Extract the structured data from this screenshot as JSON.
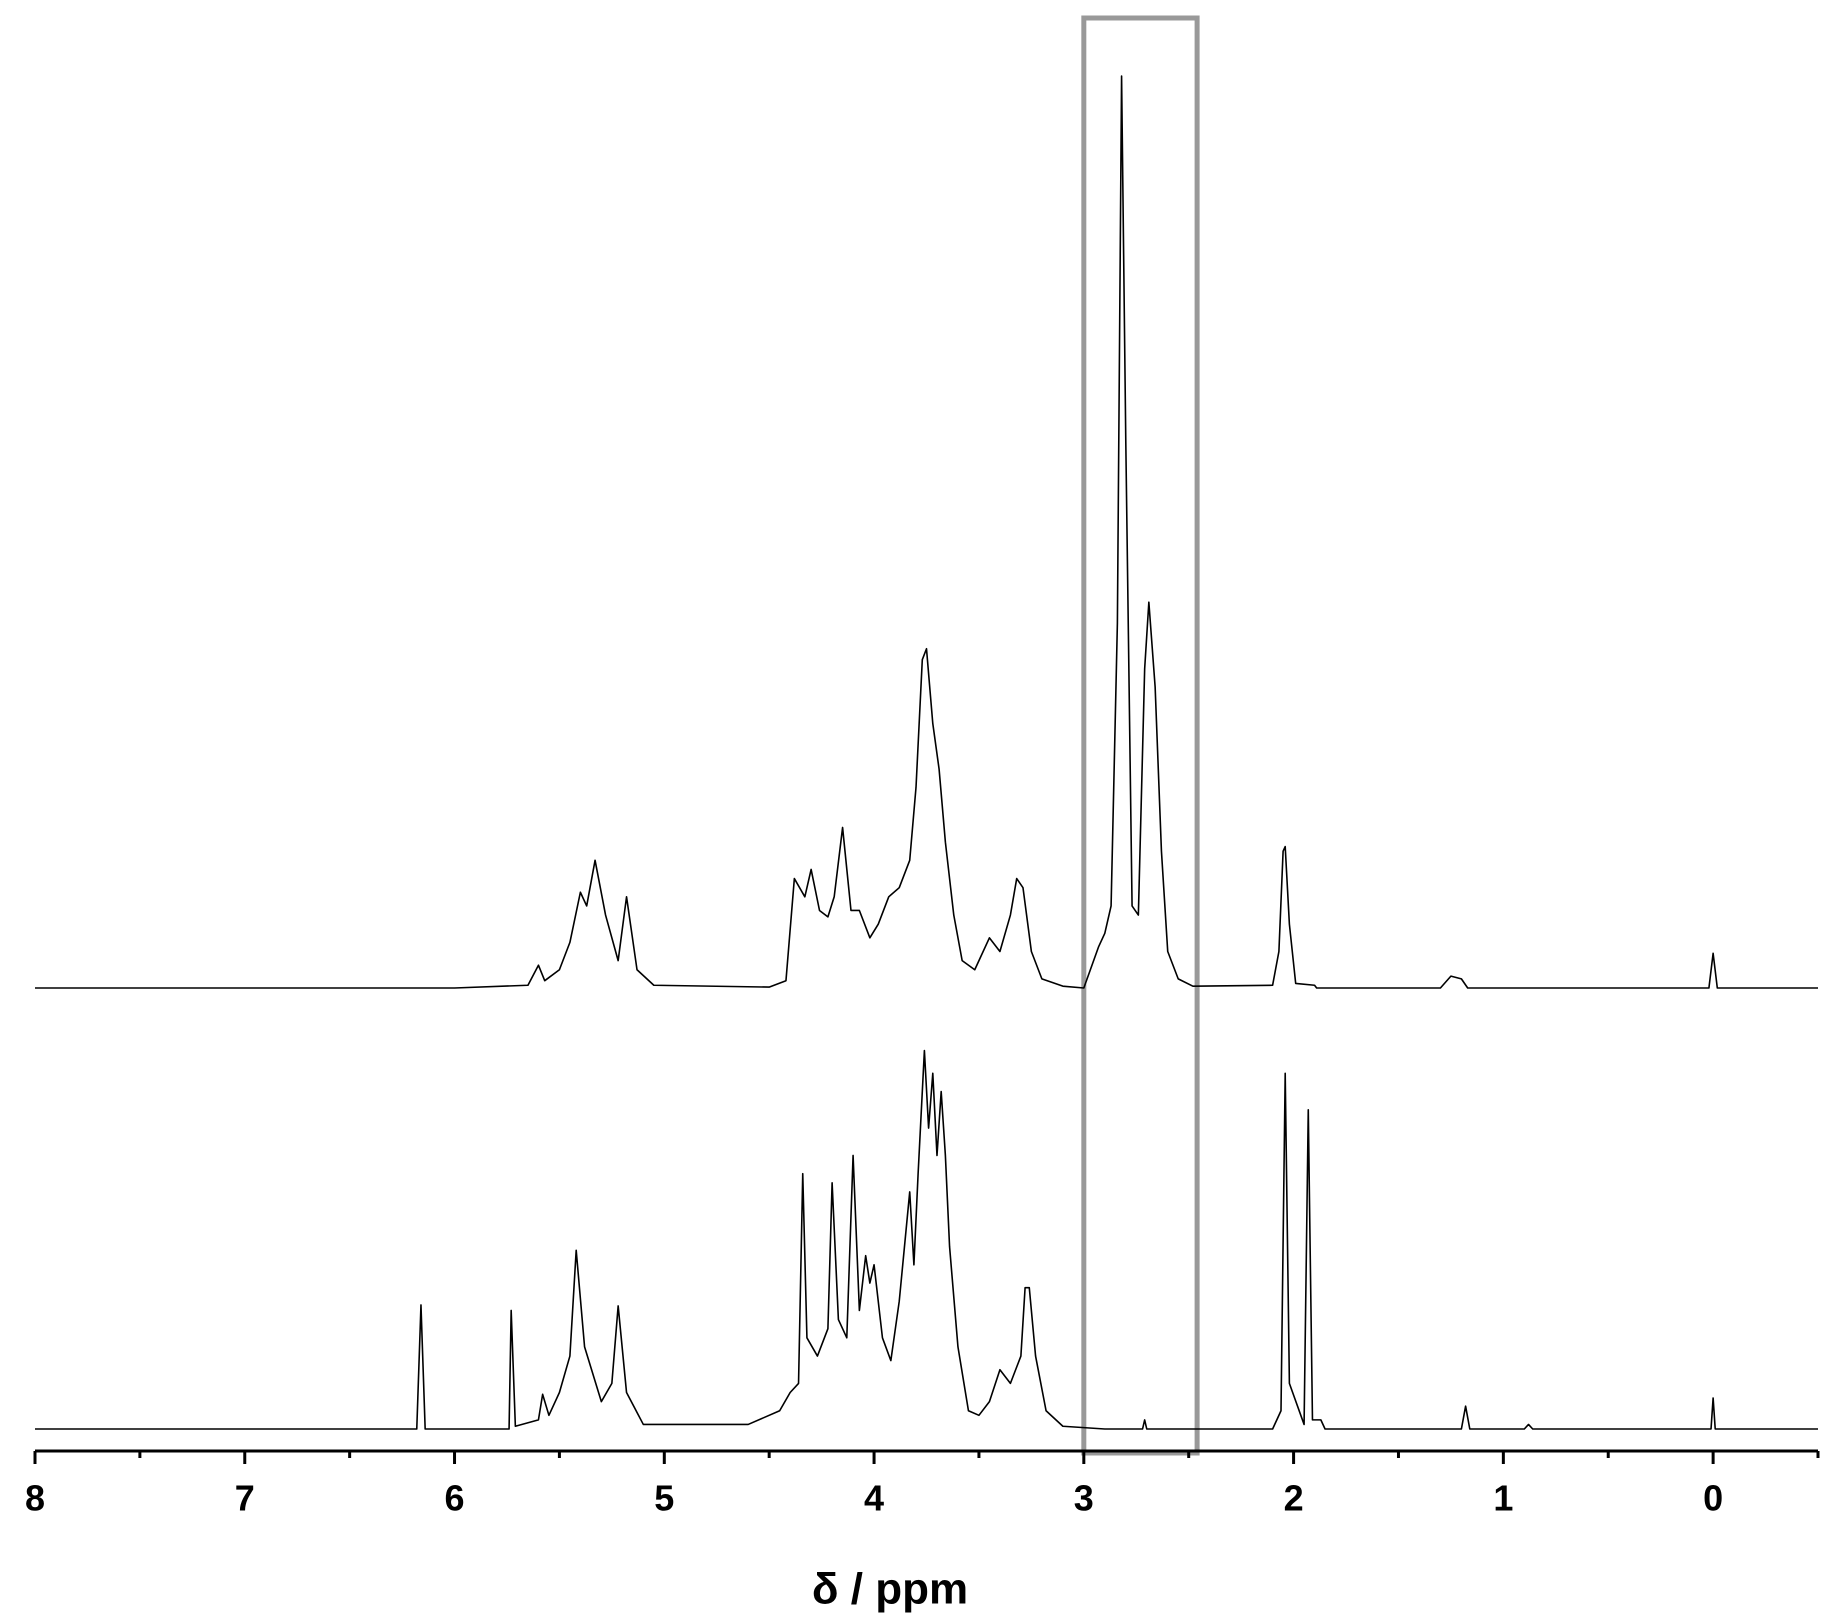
{
  "chart_data": {
    "type": "line",
    "xlabel": "δ / ppm",
    "xlim": [
      8,
      -0.5
    ],
    "xticks": [
      8,
      7,
      6,
      5,
      4,
      3,
      2,
      1,
      0
    ],
    "xminorticks": [
      7.5,
      6.5,
      5.5,
      4.5,
      3.5,
      2.5,
      1.5,
      0.5,
      -0.5
    ],
    "highlight_range": [
      3,
      2.46
    ],
    "highlight_color": "#999999",
    "series": [
      {
        "color": "#000000",
        "x": [
          8,
          6,
          5.65,
          5.6,
          5.57,
          5.5,
          5.45,
          5.4,
          5.37,
          5.33,
          5.28,
          5.22,
          5.18,
          5.13,
          5.05,
          4.5,
          4.42,
          4.38,
          4.33,
          4.3,
          4.26,
          4.22,
          4.19,
          4.15,
          4.11,
          4.07,
          4.02,
          3.98,
          3.93,
          3.88,
          3.83,
          3.8,
          3.77,
          3.75,
          3.72,
          3.69,
          3.66,
          3.62,
          3.58,
          3.52,
          3.45,
          3.4,
          3.35,
          3.32,
          3.29,
          3.25,
          3.2,
          3.1,
          3,
          2.93,
          2.9,
          2.87,
          2.84,
          2.82,
          2.8,
          2.77,
          2.74,
          2.71,
          2.69,
          2.66,
          2.63,
          2.6,
          2.55,
          2.48,
          2.1,
          2.07,
          2.05,
          2.04,
          2.02,
          1.99,
          1.9,
          1.89,
          1.3,
          1.25,
          1.2,
          1.17,
          0.02,
          0,
          -0.02,
          -0.5
        ],
        "values": [
          0,
          0,
          0.3,
          2.5,
          0.8,
          2,
          5,
          10.5,
          9,
          14,
          8,
          3,
          10,
          2,
          0.3,
          0.1,
          0.8,
          12,
          10,
          13,
          8.5,
          7.8,
          10,
          17.6,
          8.5,
          8.5,
          5.5,
          7,
          10,
          11,
          14,
          22,
          36,
          37.2,
          29,
          24,
          16,
          8,
          3,
          2,
          5.5,
          4,
          8,
          12,
          11,
          4,
          1,
          0.2,
          0,
          4.5,
          6,
          9,
          40,
          100,
          60,
          9,
          8,
          35,
          42.3,
          33,
          15,
          4,
          1,
          0.2,
          0.3,
          4,
          15,
          15.5,
          7,
          0.5,
          0.3,
          0,
          0,
          1.3,
          1,
          0,
          0,
          3.8,
          0,
          0
        ]
      },
      {
        "color": "#000000",
        "x": [
          8,
          6.18,
          6.16,
          6.14,
          5.74,
          5.73,
          5.71,
          5.6,
          5.58,
          5.55,
          5.5,
          5.45,
          5.42,
          5.38,
          5.3,
          5.25,
          5.22,
          5.18,
          5.1,
          4.6,
          4.45,
          4.4,
          4.36,
          4.34,
          4.32,
          4.27,
          4.22,
          4.2,
          4.17,
          4.13,
          4.1,
          4.07,
          4.04,
          4.02,
          4,
          3.96,
          3.92,
          3.88,
          3.83,
          3.81,
          3.79,
          3.76,
          3.74,
          3.72,
          3.7,
          3.68,
          3.66,
          3.64,
          3.6,
          3.55,
          3.5,
          3.45,
          3.4,
          3.35,
          3.3,
          3.28,
          3.26,
          3.23,
          3.18,
          3.1,
          2.9,
          2.72,
          2.71,
          2.7,
          2.1,
          2.06,
          2.04,
          2.02,
          1.95,
          1.93,
          1.91,
          1.87,
          1.85,
          1.2,
          1.18,
          1.16,
          0.9,
          0.88,
          0.86,
          0.01,
          0,
          -0.01,
          -0.5
        ],
        "values": [
          0,
          0,
          13.6,
          0,
          0,
          13,
          0.3,
          1,
          3.8,
          1.5,
          4,
          8,
          19.6,
          9,
          3,
          5,
          13.5,
          4,
          0.5,
          0.5,
          2,
          4,
          5,
          28,
          10,
          8,
          11,
          27,
          12,
          10,
          30,
          13,
          19,
          16,
          18,
          10,
          7.5,
          14,
          26,
          18,
          28,
          41.5,
          33,
          39,
          30,
          37,
          30,
          20,
          9,
          2,
          1.5,
          3,
          6.5,
          5,
          8,
          15.5,
          15.5,
          8,
          2,
          0.3,
          0,
          0,
          1,
          0,
          0,
          2,
          39,
          5,
          0.5,
          35,
          1,
          1,
          0,
          0,
          2.5,
          0,
          0,
          0.5,
          0,
          0,
          3.4,
          0,
          0
        ]
      }
    ]
  }
}
